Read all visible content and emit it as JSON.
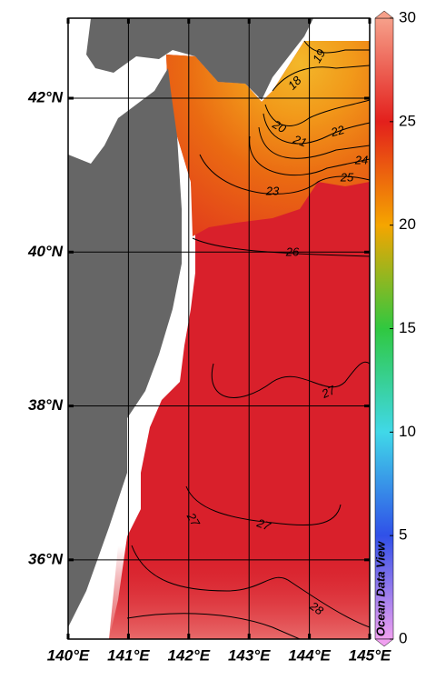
{
  "map": {
    "lon_range": [
      140,
      145
    ],
    "lat_range": [
      34.97,
      43.04
    ],
    "lon_ticks": [
      {
        "value": 140,
        "label": "140°E"
      },
      {
        "value": 141,
        "label": "141°E"
      },
      {
        "value": 142,
        "label": "142°E"
      },
      {
        "value": 143,
        "label": "143°E"
      },
      {
        "value": 144,
        "label": "144°E"
      },
      {
        "value": 145,
        "label": "145°E"
      }
    ],
    "lat_ticks": [
      {
        "value": 36,
        "label": "36°N"
      },
      {
        "value": 38,
        "label": "38°N"
      },
      {
        "value": 40,
        "label": "40°N"
      },
      {
        "value": 42,
        "label": "42°N"
      }
    ],
    "land_color": "#666666",
    "grid": true
  },
  "colorbar": {
    "range": [
      0,
      30
    ],
    "ticks": [
      0,
      5,
      10,
      15,
      20,
      25,
      30
    ],
    "colors": [
      "#f0a0f0",
      "#3050e8",
      "#40d8e8",
      "#30c840",
      "#f5a500",
      "#e3201c",
      "#f6a08a"
    ]
  },
  "contour_labels": [
    19,
    18,
    20,
    21,
    22,
    24,
    25,
    23,
    26,
    27,
    27,
    27,
    28
  ],
  "watermark": "Ocean Data View"
}
